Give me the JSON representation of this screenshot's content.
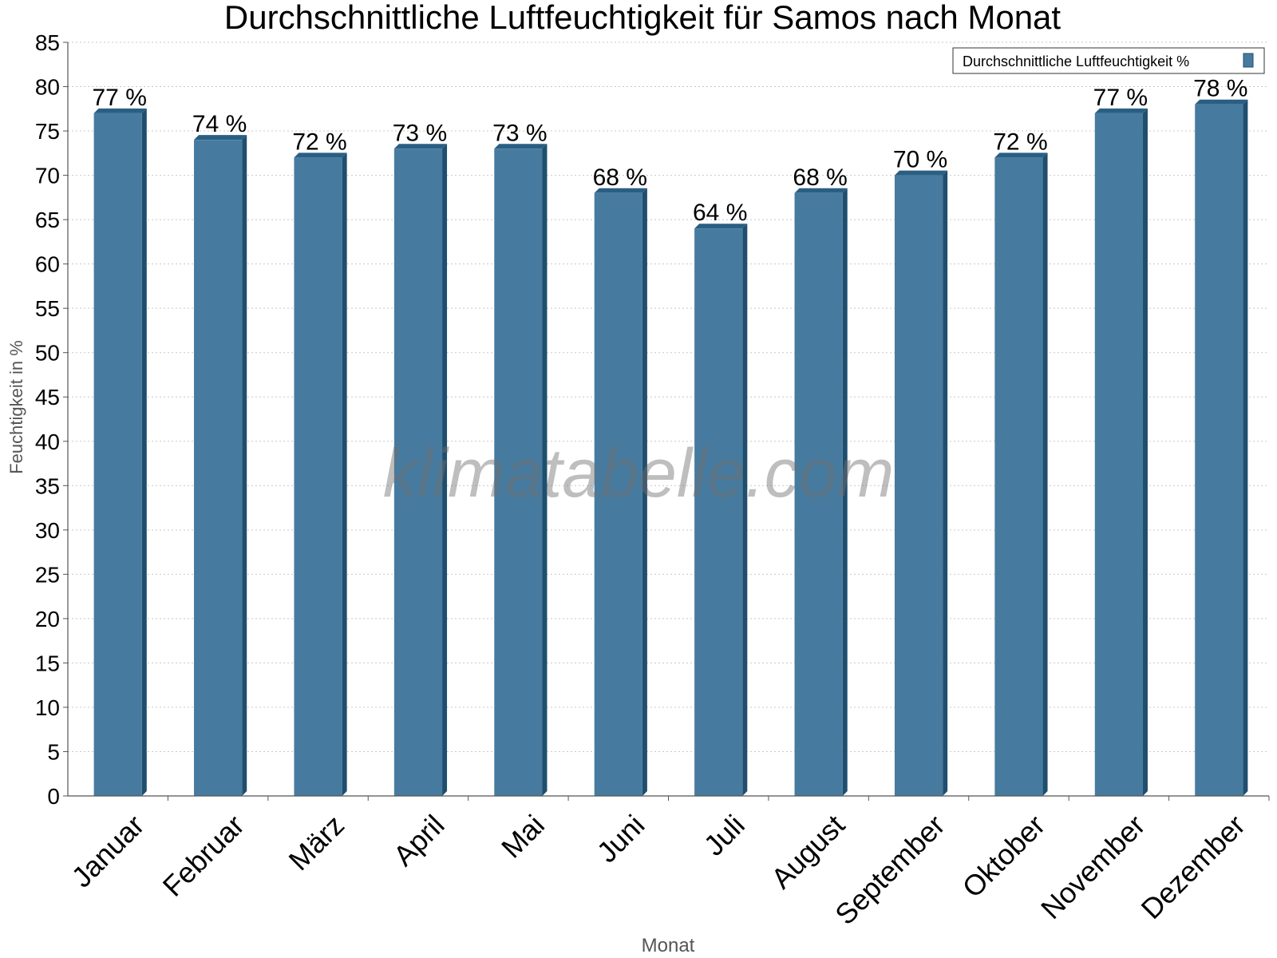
{
  "chart_data": {
    "type": "bar",
    "title": "Durchschnittliche Luftfeuchtigkeit für Samos nach Monat",
    "xlabel": "Monat",
    "ylabel": "Feuchtigkeit in %",
    "categories": [
      "Januar",
      "Februar",
      "März",
      "April",
      "Mai",
      "Juni",
      "Juli",
      "August",
      "September",
      "Oktober",
      "November",
      "Dezember"
    ],
    "series": [
      {
        "name": "Durchschnittliche Luftfeuchtigkeit %",
        "values": [
          77,
          74,
          72,
          73,
          73,
          68,
          64,
          68,
          70,
          72,
          77,
          78
        ],
        "labels": [
          "77 %",
          "74 %",
          "72 %",
          "73 %",
          "73 %",
          "68 %",
          "64 %",
          "68 %",
          "70 %",
          "72 %",
          "77 %",
          "78 %"
        ]
      }
    ],
    "ylim": [
      0,
      85
    ],
    "yticks": [
      "0",
      "5",
      "10",
      "15",
      "20",
      "25",
      "30",
      "35",
      "40",
      "45",
      "50",
      "55",
      "60",
      "65",
      "70",
      "75",
      "80",
      "85"
    ],
    "grid": true,
    "legend_position": "top-right",
    "colors": {
      "bar": "#467b9f",
      "bar_side": "#1f4e6e",
      "bar_top": "#2a5f84",
      "grid": "#c8c8c8",
      "axis": "#555555"
    }
  },
  "watermark": "klimatabelle.com"
}
